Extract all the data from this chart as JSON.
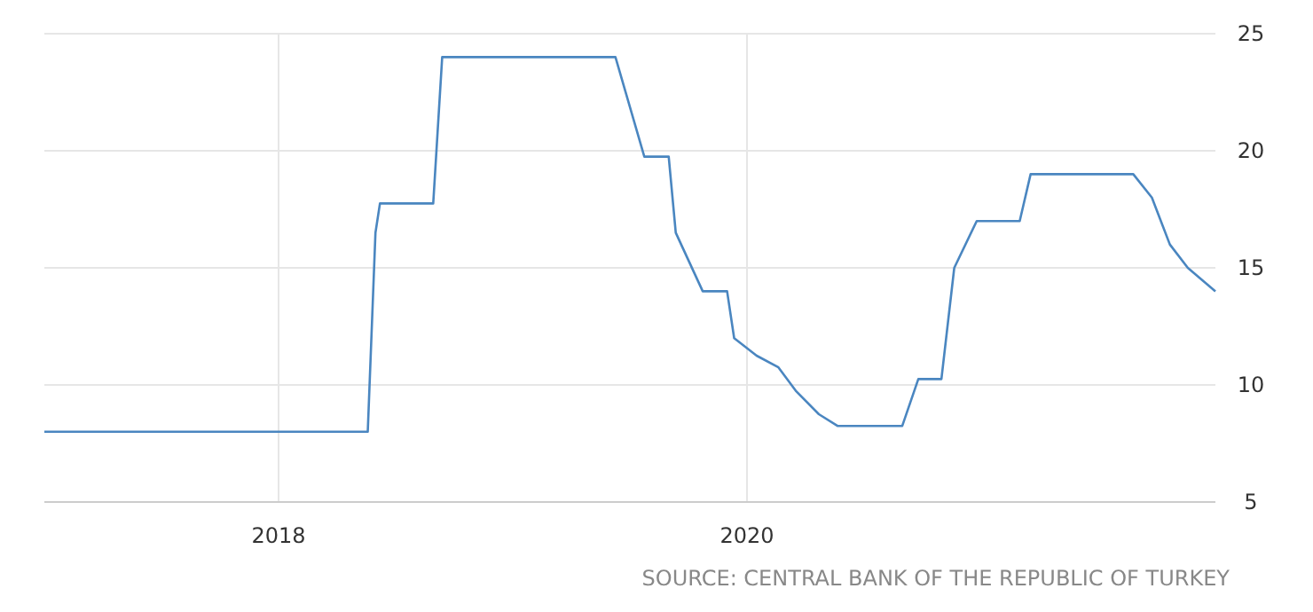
{
  "chart_data": {
    "type": "line",
    "x": [
      "2017-01-01",
      "2018-05-20",
      "2018-06-01",
      "2018-06-08",
      "2018-08-30",
      "2018-09-13",
      "2019-06-10",
      "2019-07-25",
      "2019-09-01",
      "2019-09-12",
      "2019-10-24",
      "2019-12-01",
      "2019-12-12",
      "2020-01-16",
      "2020-02-19",
      "2020-03-17",
      "2020-04-22",
      "2020-05-21",
      "2020-08-30",
      "2020-09-24",
      "2020-10-30",
      "2020-11-19",
      "2020-12-24",
      "2021-03-01",
      "2021-03-18",
      "2021-08-25",
      "2021-09-23",
      "2021-10-21",
      "2021-11-18",
      "2021-12-31"
    ],
    "series": [
      {
        "color": "#4a86c0",
        "values": [
          8,
          8,
          16.5,
          17.75,
          17.75,
          24,
          24,
          19.75,
          19.75,
          16.5,
          14,
          14,
          12,
          11.25,
          10.75,
          9.75,
          8.75,
          8.25,
          8.25,
          10.25,
          10.25,
          15,
          17,
          17,
          19,
          19,
          18,
          16,
          15,
          14
        ]
      }
    ],
    "xlim": [
      "2017-01-01",
      "2021-12-31"
    ],
    "xticks": [
      {
        "value": "2018-01-01",
        "label": "2018"
      },
      {
        "value": "2020-01-01",
        "label": "2020"
      }
    ],
    "ylim": [
      5,
      25
    ],
    "yticks": [
      5,
      10,
      15,
      20,
      25
    ],
    "grid": true,
    "annotations": [
      "SOURCE: CENTRAL BANK OF THE REPUBLIC OF TURKEY"
    ]
  }
}
